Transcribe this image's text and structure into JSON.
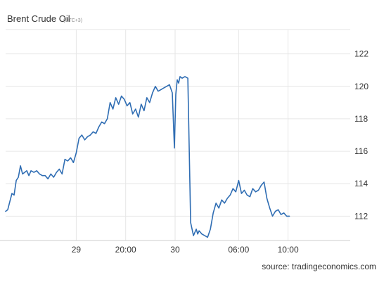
{
  "chart_data": {
    "type": "line",
    "title": "Brent Crude Oil",
    "subtitle": "(UTC+3)",
    "source": "source: tradingeconomics.com",
    "ylim": [
      110.5,
      123.5
    ],
    "y_ticks": [
      {
        "value": 112,
        "label": "112"
      },
      {
        "value": 114,
        "label": "114"
      },
      {
        "value": 116,
        "label": "116"
      },
      {
        "value": 118,
        "label": "118"
      },
      {
        "value": 120,
        "label": "120"
      },
      {
        "value": 122,
        "label": "122"
      }
    ],
    "xlim": [
      0,
      48.8
    ],
    "x_ticks": [
      {
        "value": 10,
        "label": "29"
      },
      {
        "value": 17,
        "label": "20:00"
      },
      {
        "value": 24,
        "label": "30"
      },
      {
        "value": 33,
        "label": "06:00"
      },
      {
        "value": 40,
        "label": "10:00"
      }
    ],
    "grid": true,
    "line_color": "#2f6db3",
    "series": [
      {
        "name": "",
        "x": [
          0,
          0.3,
          0.6,
          0.9,
          1.2,
          1.5,
          1.8,
          2.1,
          2.4,
          2.7,
          3.0,
          3.3,
          3.6,
          4.0,
          4.4,
          4.8,
          5.2,
          5.6,
          6.0,
          6.4,
          6.8,
          7.2,
          7.6,
          8.0,
          8.4,
          8.8,
          9.2,
          9.6,
          10.0,
          10.4,
          10.8,
          11.2,
          11.6,
          12.0,
          12.4,
          12.8,
          13.2,
          13.6,
          14.0,
          14.4,
          14.8,
          15.2,
          15.6,
          16.0,
          16.4,
          16.8,
          17.2,
          17.6,
          18.0,
          18.4,
          18.8,
          19.2,
          19.6,
          20.0,
          20.4,
          20.8,
          21.2,
          21.6,
          22.0,
          22.4,
          22.8,
          23.2,
          23.6,
          23.9,
          24.1,
          24.3,
          24.5,
          24.7,
          25.0,
          25.4,
          25.8,
          26.2,
          26.6,
          27.0,
          27.2,
          27.4,
          27.6,
          27.8,
          28.2,
          28.6,
          29.0,
          29.4,
          29.8,
          30.2,
          30.6,
          31.0,
          31.4,
          31.8,
          32.2,
          32.6,
          33.0,
          33.4,
          33.8,
          34.2,
          34.6,
          35.0,
          35.4,
          35.8,
          36.2,
          36.6,
          37.0,
          37.4,
          37.8,
          38.2,
          38.6,
          39.0,
          39.4,
          39.8,
          40.2
        ],
        "values": [
          112.3,
          112.4,
          112.9,
          113.4,
          113.3,
          114.2,
          114.4,
          115.1,
          114.6,
          114.7,
          114.8,
          114.5,
          114.8,
          114.7,
          114.8,
          114.6,
          114.5,
          114.5,
          114.3,
          114.6,
          114.4,
          114.7,
          114.9,
          114.6,
          115.5,
          115.4,
          115.6,
          115.3,
          115.9,
          116.8,
          117.0,
          116.7,
          116.9,
          117.0,
          117.2,
          117.1,
          117.5,
          117.8,
          117.7,
          118.0,
          119.0,
          118.6,
          119.3,
          118.9,
          119.4,
          119.2,
          118.8,
          119.0,
          118.3,
          118.6,
          118.1,
          118.9,
          118.5,
          119.3,
          119.0,
          119.6,
          120.0,
          119.7,
          119.8,
          119.9,
          120.0,
          120.1,
          119.6,
          116.2,
          119.5,
          120.4,
          120.2,
          120.6,
          120.5,
          120.6,
          120.5,
          111.6,
          110.8,
          111.2,
          110.9,
          111.1,
          111.0,
          110.9,
          110.8,
          110.7,
          111.2,
          112.2,
          112.8,
          112.5,
          113.0,
          112.8,
          113.1,
          113.3,
          113.7,
          113.5,
          114.2,
          113.4,
          113.6,
          113.3,
          113.2,
          113.7,
          113.5,
          113.6,
          113.9,
          114.1,
          113.1,
          112.5,
          112.0,
          112.3,
          112.4,
          112.1,
          112.2,
          112.0,
          112.0
        ]
      }
    ]
  }
}
